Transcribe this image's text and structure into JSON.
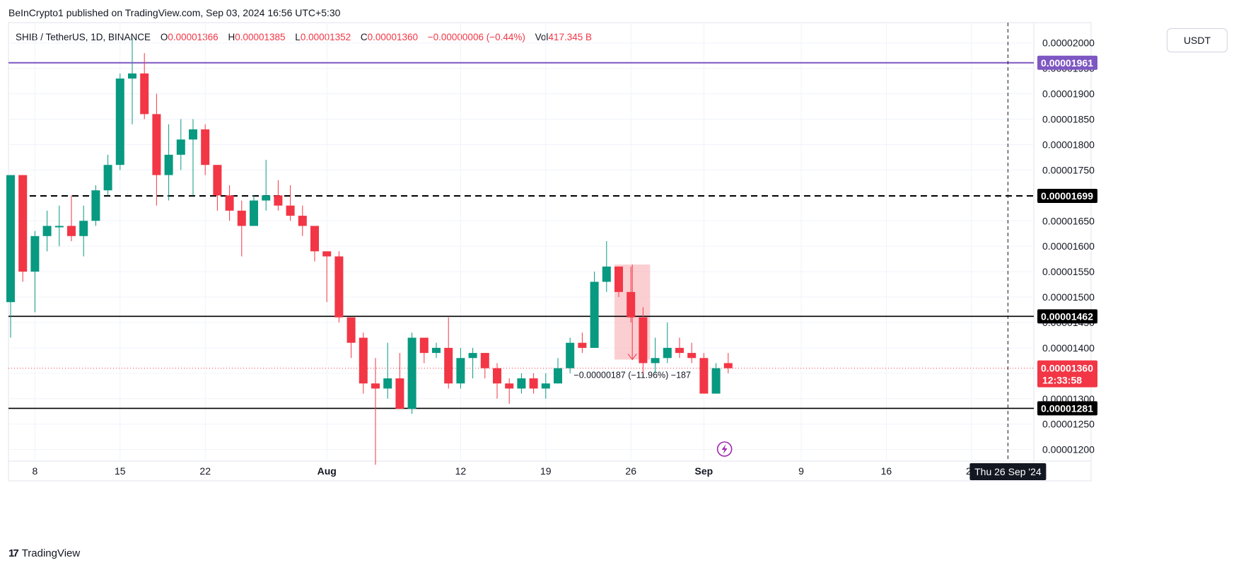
{
  "header": {
    "publisher": "BeInCrypto1 published on TradingView.com, Sep 03, 2024 16:56 UTC+5:30"
  },
  "legend": {
    "symbol": "SHIB / TetherUS, 1D, BINANCE",
    "o_label": "O",
    "o_value": "0.00001366",
    "h_label": "H",
    "h_value": "0.00001385",
    "l_label": "L",
    "l_value": "0.00001352",
    "c_label": "C",
    "c_value": "0.00001360",
    "change": "−0.00000006 (−0.44%)",
    "vol_label": "Vol",
    "vol_value": "417.345 B"
  },
  "toolbar": {
    "currency": "USDT"
  },
  "footer": {
    "brand": "TradingView"
  },
  "colors": {
    "up": "#089981",
    "down": "#f23645",
    "purple_line": "#7e57c2",
    "black_line": "#000000",
    "grid": "#f0f3fa",
    "measure_fill": "#f7a7ad"
  },
  "chart_data": {
    "type": "candlestick",
    "y_range": [
      1.18e-05,
      2.04e-05
    ],
    "y_ticks": [
      {
        "value": 1.2e-05,
        "label": "0.00001200"
      },
      {
        "value": 1.25e-05,
        "label": "0.00001250"
      },
      {
        "value": 1.3e-05,
        "label": "0.00001300"
      },
      {
        "value": 1.35e-05,
        "label": "0.00001350"
      },
      {
        "value": 1.4e-05,
        "label": "0.00001400"
      },
      {
        "value": 1.45e-05,
        "label": "0.00001450"
      },
      {
        "value": 1.5e-05,
        "label": "0.00001500"
      },
      {
        "value": 1.55e-05,
        "label": "0.00001550"
      },
      {
        "value": 1.6e-05,
        "label": "0.00001600"
      },
      {
        "value": 1.65e-05,
        "label": "0.00001650"
      },
      {
        "value": 1.7e-05,
        "label": "0.00001700"
      },
      {
        "value": 1.75e-05,
        "label": "0.00001750"
      },
      {
        "value": 1.8e-05,
        "label": "0.00001800"
      },
      {
        "value": 1.85e-05,
        "label": "0.00001850"
      },
      {
        "value": 1.9e-05,
        "label": "0.00001900"
      },
      {
        "value": 1.95e-05,
        "label": "0.00001950"
      },
      {
        "value": 2e-05,
        "label": "0.00002000"
      }
    ],
    "x_ticks": [
      {
        "index": 2,
        "label": "8"
      },
      {
        "index": 9,
        "label": "15"
      },
      {
        "index": 16,
        "label": "22"
      },
      {
        "index": 26,
        "label": "Aug"
      },
      {
        "index": 37,
        "label": "12"
      },
      {
        "index": 44,
        "label": "19"
      },
      {
        "index": 51,
        "label": "26"
      },
      {
        "index": 57,
        "label": "Sep"
      },
      {
        "index": 65,
        "label": "9"
      },
      {
        "index": 72,
        "label": "16"
      },
      {
        "index": 79,
        "label": "23"
      }
    ],
    "candles": [
      {
        "date": "Jul 6",
        "o": 1.49e-05,
        "h": 1.74e-05,
        "l": 1.42e-05,
        "c": 1.74e-05
      },
      {
        "date": "Jul 7",
        "o": 1.74e-05,
        "h": 1.74e-05,
        "l": 1.53e-05,
        "c": 1.55e-05
      },
      {
        "date": "Jul 8",
        "o": 1.55e-05,
        "h": 1.63e-05,
        "l": 1.47e-05,
        "c": 1.62e-05
      },
      {
        "date": "Jul 9",
        "o": 1.62e-05,
        "h": 1.67e-05,
        "l": 1.59e-05,
        "c": 1.64e-05
      },
      {
        "date": "Jul 10",
        "o": 1.64e-05,
        "h": 1.68e-05,
        "l": 1.6e-05,
        "c": 1.64e-05
      },
      {
        "date": "Jul 11",
        "o": 1.64e-05,
        "h": 1.7e-05,
        "l": 1.61e-05,
        "c": 1.62e-05
      },
      {
        "date": "Jul 12",
        "o": 1.62e-05,
        "h": 1.68e-05,
        "l": 1.58e-05,
        "c": 1.65e-05
      },
      {
        "date": "Jul 13",
        "o": 1.65e-05,
        "h": 1.72e-05,
        "l": 1.64e-05,
        "c": 1.71e-05
      },
      {
        "date": "Jul 14",
        "o": 1.71e-05,
        "h": 1.78e-05,
        "l": 1.7e-05,
        "c": 1.76e-05
      },
      {
        "date": "Jul 15",
        "o": 1.76e-05,
        "h": 1.94e-05,
        "l": 1.75e-05,
        "c": 1.93e-05
      },
      {
        "date": "Jul 16",
        "o": 1.93e-05,
        "h": 2.01e-05,
        "l": 1.84e-05,
        "c": 1.94e-05
      },
      {
        "date": "Jul 17",
        "o": 1.94e-05,
        "h": 1.98e-05,
        "l": 1.85e-05,
        "c": 1.86e-05
      },
      {
        "date": "Jul 18",
        "o": 1.86e-05,
        "h": 1.9e-05,
        "l": 1.68e-05,
        "c": 1.74e-05
      },
      {
        "date": "Jul 19",
        "o": 1.74e-05,
        "h": 1.84e-05,
        "l": 1.69e-05,
        "c": 1.78e-05
      },
      {
        "date": "Jul 20",
        "o": 1.78e-05,
        "h": 1.85e-05,
        "l": 1.75e-05,
        "c": 1.81e-05
      },
      {
        "date": "Jul 21",
        "o": 1.81e-05,
        "h": 1.85e-05,
        "l": 1.7e-05,
        "c": 1.83e-05
      },
      {
        "date": "Jul 22",
        "o": 1.83e-05,
        "h": 1.84e-05,
        "l": 1.74e-05,
        "c": 1.76e-05
      },
      {
        "date": "Jul 23",
        "o": 1.76e-05,
        "h": 1.76e-05,
        "l": 1.67e-05,
        "c": 1.7e-05
      },
      {
        "date": "Jul 24",
        "o": 1.7e-05,
        "h": 1.72e-05,
        "l": 1.65e-05,
        "c": 1.67e-05
      },
      {
        "date": "Jul 25",
        "o": 1.67e-05,
        "h": 1.69e-05,
        "l": 1.58e-05,
        "c": 1.64e-05
      },
      {
        "date": "Jul 26",
        "o": 1.64e-05,
        "h": 1.7e-05,
        "l": 1.64e-05,
        "c": 1.69e-05
      },
      {
        "date": "Jul 27",
        "o": 1.69e-05,
        "h": 1.77e-05,
        "l": 1.67e-05,
        "c": 1.7e-05
      },
      {
        "date": "Jul 28",
        "o": 1.7e-05,
        "h": 1.73e-05,
        "l": 1.67e-05,
        "c": 1.68e-05
      },
      {
        "date": "Jul 29",
        "o": 1.68e-05,
        "h": 1.72e-05,
        "l": 1.65e-05,
        "c": 1.66e-05
      },
      {
        "date": "Jul 30",
        "o": 1.66e-05,
        "h": 1.68e-05,
        "l": 1.62e-05,
        "c": 1.64e-05
      },
      {
        "date": "Jul 31",
        "o": 1.64e-05,
        "h": 1.64e-05,
        "l": 1.57e-05,
        "c": 1.59e-05
      },
      {
        "date": "Aug 1",
        "o": 1.59e-05,
        "h": 1.59e-05,
        "l": 1.49e-05,
        "c": 1.58e-05
      },
      {
        "date": "Aug 2",
        "o": 1.58e-05,
        "h": 1.59e-05,
        "l": 1.45e-05,
        "c": 1.46e-05
      },
      {
        "date": "Aug 3",
        "o": 1.46e-05,
        "h": 1.46e-05,
        "l": 1.38e-05,
        "c": 1.41e-05
      },
      {
        "date": "Aug 4",
        "o": 1.42e-05,
        "h": 1.43e-05,
        "l": 1.31e-05,
        "c": 1.33e-05
      },
      {
        "date": "Aug 5",
        "o": 1.33e-05,
        "h": 1.38e-05,
        "l": 1.17e-05,
        "c": 1.32e-05
      },
      {
        "date": "Aug 6",
        "o": 1.32e-05,
        "h": 1.41e-05,
        "l": 1.3e-05,
        "c": 1.34e-05
      },
      {
        "date": "Aug 7",
        "o": 1.34e-05,
        "h": 1.39e-05,
        "l": 1.28e-05,
        "c": 1.28e-05
      },
      {
        "date": "Aug 8",
        "o": 1.28e-05,
        "h": 1.43e-05,
        "l": 1.27e-05,
        "c": 1.42e-05
      },
      {
        "date": "Aug 9",
        "o": 1.42e-05,
        "h": 1.42e-05,
        "l": 1.37e-05,
        "c": 1.39e-05
      },
      {
        "date": "Aug 10",
        "o": 1.39e-05,
        "h": 1.41e-05,
        "l": 1.38e-05,
        "c": 1.4e-05
      },
      {
        "date": "Aug 11",
        "o": 1.4e-05,
        "h": 1.46e-05,
        "l": 1.32e-05,
        "c": 1.33e-05
      },
      {
        "date": "Aug 12",
        "o": 1.33e-05,
        "h": 1.4e-05,
        "l": 1.32e-05,
        "c": 1.38e-05
      },
      {
        "date": "Aug 13",
        "o": 1.38e-05,
        "h": 1.4e-05,
        "l": 1.34e-05,
        "c": 1.39e-05
      },
      {
        "date": "Aug 14",
        "o": 1.39e-05,
        "h": 1.39e-05,
        "l": 1.34e-05,
        "c": 1.36e-05
      },
      {
        "date": "Aug 15",
        "o": 1.36e-05,
        "h": 1.37e-05,
        "l": 1.3e-05,
        "c": 1.33e-05
      },
      {
        "date": "Aug 16",
        "o": 1.33e-05,
        "h": 1.34e-05,
        "l": 1.29e-05,
        "c": 1.32e-05
      },
      {
        "date": "Aug 17",
        "o": 1.32e-05,
        "h": 1.35e-05,
        "l": 1.31e-05,
        "c": 1.34e-05
      },
      {
        "date": "Aug 18",
        "o": 1.34e-05,
        "h": 1.35e-05,
        "l": 1.31e-05,
        "c": 1.32e-05
      },
      {
        "date": "Aug 19",
        "o": 1.32e-05,
        "h": 1.35e-05,
        "l": 1.3e-05,
        "c": 1.33e-05
      },
      {
        "date": "Aug 20",
        "o": 1.33e-05,
        "h": 1.38e-05,
        "l": 1.33e-05,
        "c": 1.36e-05
      },
      {
        "date": "Aug 21",
        "o": 1.36e-05,
        "h": 1.42e-05,
        "l": 1.35e-05,
        "c": 1.41e-05
      },
      {
        "date": "Aug 22",
        "o": 1.41e-05,
        "h": 1.43e-05,
        "l": 1.39e-05,
        "c": 1.4e-05
      },
      {
        "date": "Aug 23",
        "o": 1.4e-05,
        "h": 1.55e-05,
        "l": 1.4e-05,
        "c": 1.53e-05
      },
      {
        "date": "Aug 24",
        "o": 1.53e-05,
        "h": 1.61e-05,
        "l": 1.51e-05,
        "c": 1.56e-05
      },
      {
        "date": "Aug 25",
        "o": 1.56e-05,
        "h": 1.56e-05,
        "l": 1.5e-05,
        "c": 1.51e-05
      },
      {
        "date": "Aug 26",
        "o": 1.51e-05,
        "h": 1.56e-05,
        "l": 1.45e-05,
        "c": 1.46e-05
      },
      {
        "date": "Aug 27",
        "o": 1.46e-05,
        "h": 1.48e-05,
        "l": 1.35e-05,
        "c": 1.37e-05
      },
      {
        "date": "Aug 28",
        "o": 1.37e-05,
        "h": 1.42e-05,
        "l": 1.35e-05,
        "c": 1.38e-05
      },
      {
        "date": "Aug 29",
        "o": 1.38e-05,
        "h": 1.45e-05,
        "l": 1.37e-05,
        "c": 1.4e-05
      },
      {
        "date": "Aug 30",
        "o": 1.4e-05,
        "h": 1.42e-05,
        "l": 1.38e-05,
        "c": 1.39e-05
      },
      {
        "date": "Aug 31",
        "o": 1.39e-05,
        "h": 1.41e-05,
        "l": 1.37e-05,
        "c": 1.38e-05
      },
      {
        "date": "Sep 1",
        "o": 1.38e-05,
        "h": 1.39e-05,
        "l": 1.31e-05,
        "c": 1.31e-05
      },
      {
        "date": "Sep 2",
        "o": 1.31e-05,
        "h": 1.37e-05,
        "l": 1.31e-05,
        "c": 1.36e-05
      },
      {
        "date": "Sep 3",
        "o": 1.37e-05,
        "h": 1.39e-05,
        "l": 1.35e-05,
        "c": 1.36e-05
      }
    ],
    "horizontal_lines": [
      {
        "value": 1.961e-05,
        "label": "0.00001961",
        "color": "#7e57c2",
        "style": "solid"
      },
      {
        "value": 1.699e-05,
        "label": "0.00001699",
        "color": "#000000",
        "style": "dashed"
      },
      {
        "value": 1.462e-05,
        "label": "0.00001462",
        "color": "#000000",
        "style": "solid"
      },
      {
        "value": 1.281e-05,
        "label": "0.00001281",
        "color": "#000000",
        "style": "solid"
      }
    ],
    "last_price": {
      "value": 1.36e-05,
      "label": "0.00001360",
      "countdown": "12:33:58"
    },
    "measure": {
      "from_index": 50,
      "to_index": 52,
      "top": 1.564e-05,
      "bottom": 1.377e-05,
      "label": "−0.00000187 (−11.96%) −187"
    },
    "crosshair": {
      "index": 82,
      "label": "Thu 26 Sep '24"
    }
  }
}
